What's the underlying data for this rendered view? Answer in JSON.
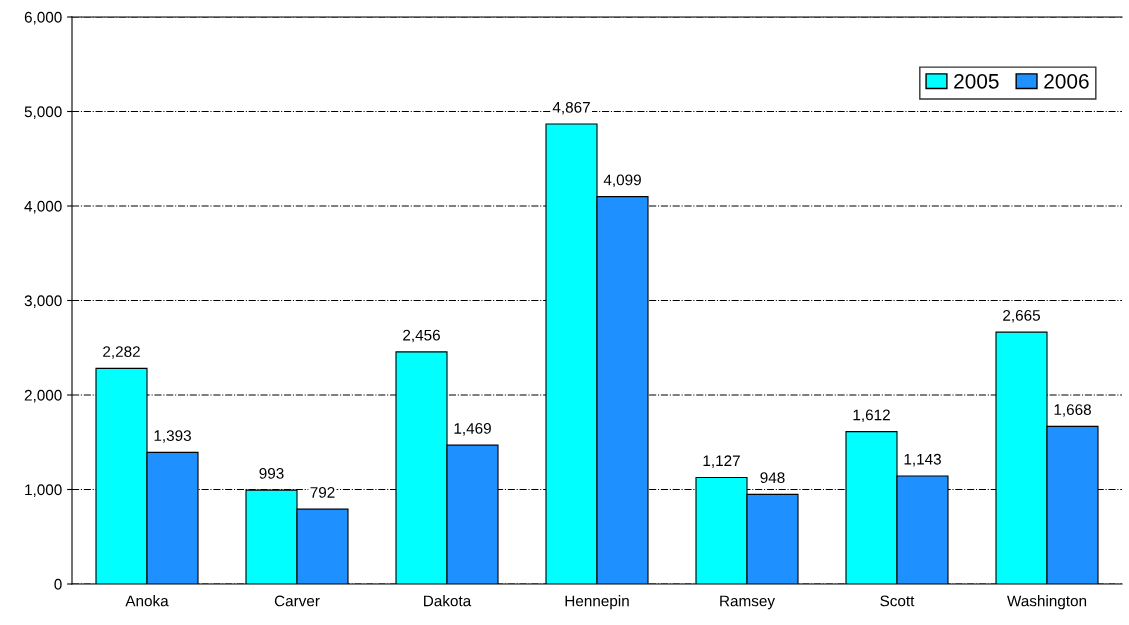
{
  "chart_data": {
    "type": "bar",
    "categories": [
      "Anoka",
      "Carver",
      "Dakota",
      "Hennepin",
      "Ramsey",
      "Scott",
      "Washington"
    ],
    "series": [
      {
        "name": "2005",
        "color": "#00ffff",
        "values": [
          2282,
          993,
          2456,
          4867,
          1127,
          1612,
          2665
        ],
        "value_labels": [
          "2,282",
          "993",
          "2,456",
          "4,867",
          "1,127",
          "1,612",
          "2,665"
        ]
      },
      {
        "name": "2006",
        "color": "#1e90ff",
        "values": [
          1393,
          792,
          1469,
          4099,
          948,
          1143,
          1668
        ],
        "value_labels": [
          "1,393",
          "792",
          "1,469",
          "4,099",
          "948",
          "1,143",
          "1,668"
        ]
      }
    ],
    "ylim": [
      0,
      6000
    ],
    "yticks": [
      {
        "value": 0,
        "label": "0"
      },
      {
        "value": 1000,
        "label": "1,000"
      },
      {
        "value": 2000,
        "label": "2,000"
      },
      {
        "value": 3000,
        "label": "3,000"
      },
      {
        "value": 4000,
        "label": "4,000"
      },
      {
        "value": 5000,
        "label": "5,000"
      },
      {
        "value": 6000,
        "label": "6,000"
      }
    ],
    "grid": "y",
    "legend": "top right"
  }
}
